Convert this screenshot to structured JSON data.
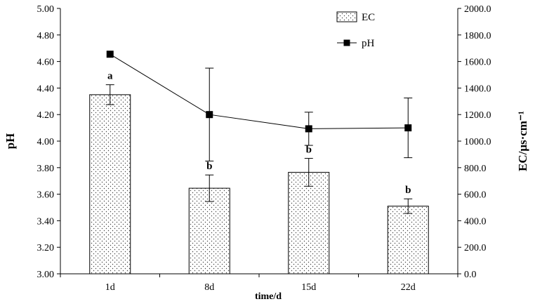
{
  "chart_data": {
    "type": "bar",
    "title": "",
    "categories": [
      "1d",
      "8d",
      "15d",
      "22d"
    ],
    "xlabel": "time/d",
    "ylabel_left": "pH",
    "ylabel_right": "EC/μs·cm⁻¹",
    "ylim_left": [
      3.0,
      5.0
    ],
    "ylim_right": [
      0.0,
      2000.0
    ],
    "yticks_left": [
      "3.00",
      "3.20",
      "3.40",
      "3.60",
      "3.80",
      "4.00",
      "4.20",
      "4.40",
      "4.60",
      "4.80",
      "5.00"
    ],
    "yticks_right": [
      "0.0",
      "200.0",
      "400.0",
      "600.0",
      "800.0",
      "1000.0",
      "1200.0",
      "1400.0",
      "1600.0",
      "1800.0",
      "2000.0"
    ],
    "grid": false,
    "legend_position": "top-right",
    "series": [
      {
        "name": "EC",
        "type": "bar",
        "axis": "right",
        "values": [
          1350,
          645,
          765,
          510
        ],
        "error": [
          75,
          100,
          105,
          55
        ],
        "significance": [
          "a",
          "b",
          "b",
          "b"
        ]
      },
      {
        "name": "pH",
        "type": "line",
        "axis": "left",
        "values": [
          4.655,
          4.2,
          4.093,
          4.1
        ],
        "error": [
          0.0,
          0.35,
          0.125,
          0.225
        ]
      }
    ]
  }
}
